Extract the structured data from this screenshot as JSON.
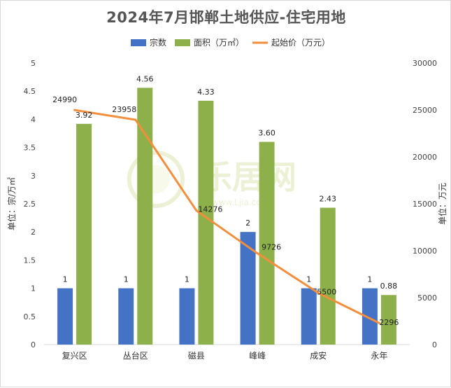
{
  "chart_data": {
    "type": "bar",
    "title": "2024年7月邯郸土地供应-住宅用地",
    "categories": [
      "复兴区",
      "丛台区",
      "磁县",
      "峰峰",
      "成安",
      "永年"
    ],
    "series": [
      {
        "name": "宗数",
        "type": "bar",
        "axis": "left",
        "color": "#4472C4",
        "values": [
          1,
          1,
          1,
          2,
          1,
          1
        ],
        "labels": [
          "1",
          "1",
          "1",
          "2",
          "1",
          "1"
        ]
      },
      {
        "name": "面积（万㎡）",
        "type": "bar",
        "axis": "left",
        "color": "#8DB04A",
        "values": [
          3.92,
          4.56,
          4.33,
          3.6,
          2.43,
          0.88
        ],
        "labels": [
          "3.92",
          "4.56",
          "4.33",
          "3.60",
          "2.43",
          "0.88"
        ]
      },
      {
        "name": "起始价（万元）",
        "type": "line",
        "axis": "right",
        "color": "#F28E3C",
        "values": [
          24990,
          23958,
          14276,
          9726,
          5500,
          2296
        ],
        "labels": [
          "24990",
          "23958",
          "14276",
          "9726",
          "5500",
          "2296"
        ]
      }
    ],
    "y_left": {
      "label": "单位：宗/万㎡",
      "min": 0,
      "max": 5,
      "ticks": [
        "0",
        "0.5",
        "1",
        "1.5",
        "2",
        "2.5",
        "3",
        "3.5",
        "4",
        "4.5",
        "5"
      ]
    },
    "y_right": {
      "label": "单位：万元",
      "min": 0,
      "max": 30000,
      "ticks": [
        "0",
        "5000",
        "10000",
        "15000",
        "20000",
        "25000",
        "30000"
      ]
    },
    "legend_position": "top",
    "grid": false
  },
  "watermark": {
    "text": "乐居网",
    "subtext": "www.Ljia.com"
  }
}
